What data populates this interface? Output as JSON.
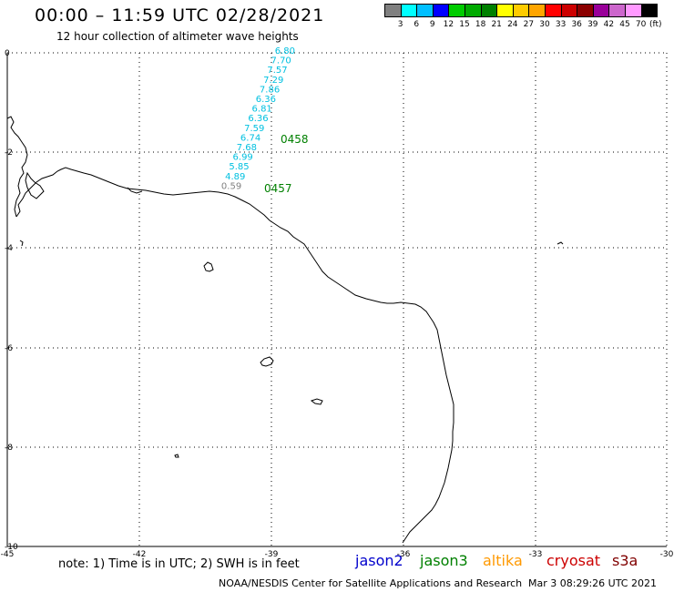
{
  "header": {
    "title": "00:00 – 11:59 UTC 02/28/2021",
    "subtitle": "12 hour collection of altimeter wave heights"
  },
  "legend": {
    "colors": [
      "#808080",
      "#00ffff",
      "#00bfff",
      "#0000ff",
      "#00cc00",
      "#00aa00",
      "#008000",
      "#ffff00",
      "#ffcc00",
      "#ffa500",
      "#ff0000",
      "#cc0000",
      "#8b0000",
      "#990099",
      "#cc66cc",
      "#ff99ff",
      "#000000"
    ],
    "ticks": [
      "3",
      "6",
      "9",
      "12",
      "15",
      "18",
      "21",
      "24",
      "27",
      "30",
      "33",
      "36",
      "39",
      "42",
      "45",
      "70"
    ],
    "unit": "(ft)"
  },
  "axes": {
    "y_ticks": [
      "0",
      "-2",
      "-4",
      "-6",
      "-8",
      "-10"
    ],
    "x_ticks": [
      "-45",
      "-42",
      "-39",
      "-36",
      "-33",
      "-30"
    ]
  },
  "track": {
    "values": [
      "6.80",
      "7.70",
      "7.57",
      "7.29",
      "7.86",
      "6.36",
      "6.81",
      "6.36",
      "7.59",
      "6.74",
      "7.68",
      "6.99",
      "5.85",
      "4.89",
      "0.59"
    ],
    "value_colors": [
      "cyan",
      "cyan",
      "cyan",
      "cyan",
      "cyan",
      "cyan",
      "cyan",
      "cyan",
      "cyan",
      "cyan",
      "cyan",
      "cyan",
      "cyan",
      "cyan",
      "gray"
    ],
    "time_upper": "0458",
    "time_lower": "0457"
  },
  "colors": {
    "cyan": "#00c0e0",
    "gray": "#808080",
    "time": "#008000",
    "grid": "#000000"
  },
  "footer": {
    "note": "note: 1) Time is in UTC; 2) SWH is in feet",
    "satellites": [
      {
        "name": "jason2",
        "color": "#0000cc"
      },
      {
        "name": "jason3",
        "color": "#008000"
      },
      {
        "name": "altika",
        "color": "#ff9900"
      },
      {
        "name": "cryosat",
        "color": "#cc0000"
      },
      {
        "name": "s3a",
        "color": "#800000"
      }
    ],
    "credit": "NOAA/NESDIS Center for Satellite Applications and Research",
    "timestamp": "Mar  3 08:29:26 UTC 2021"
  }
}
